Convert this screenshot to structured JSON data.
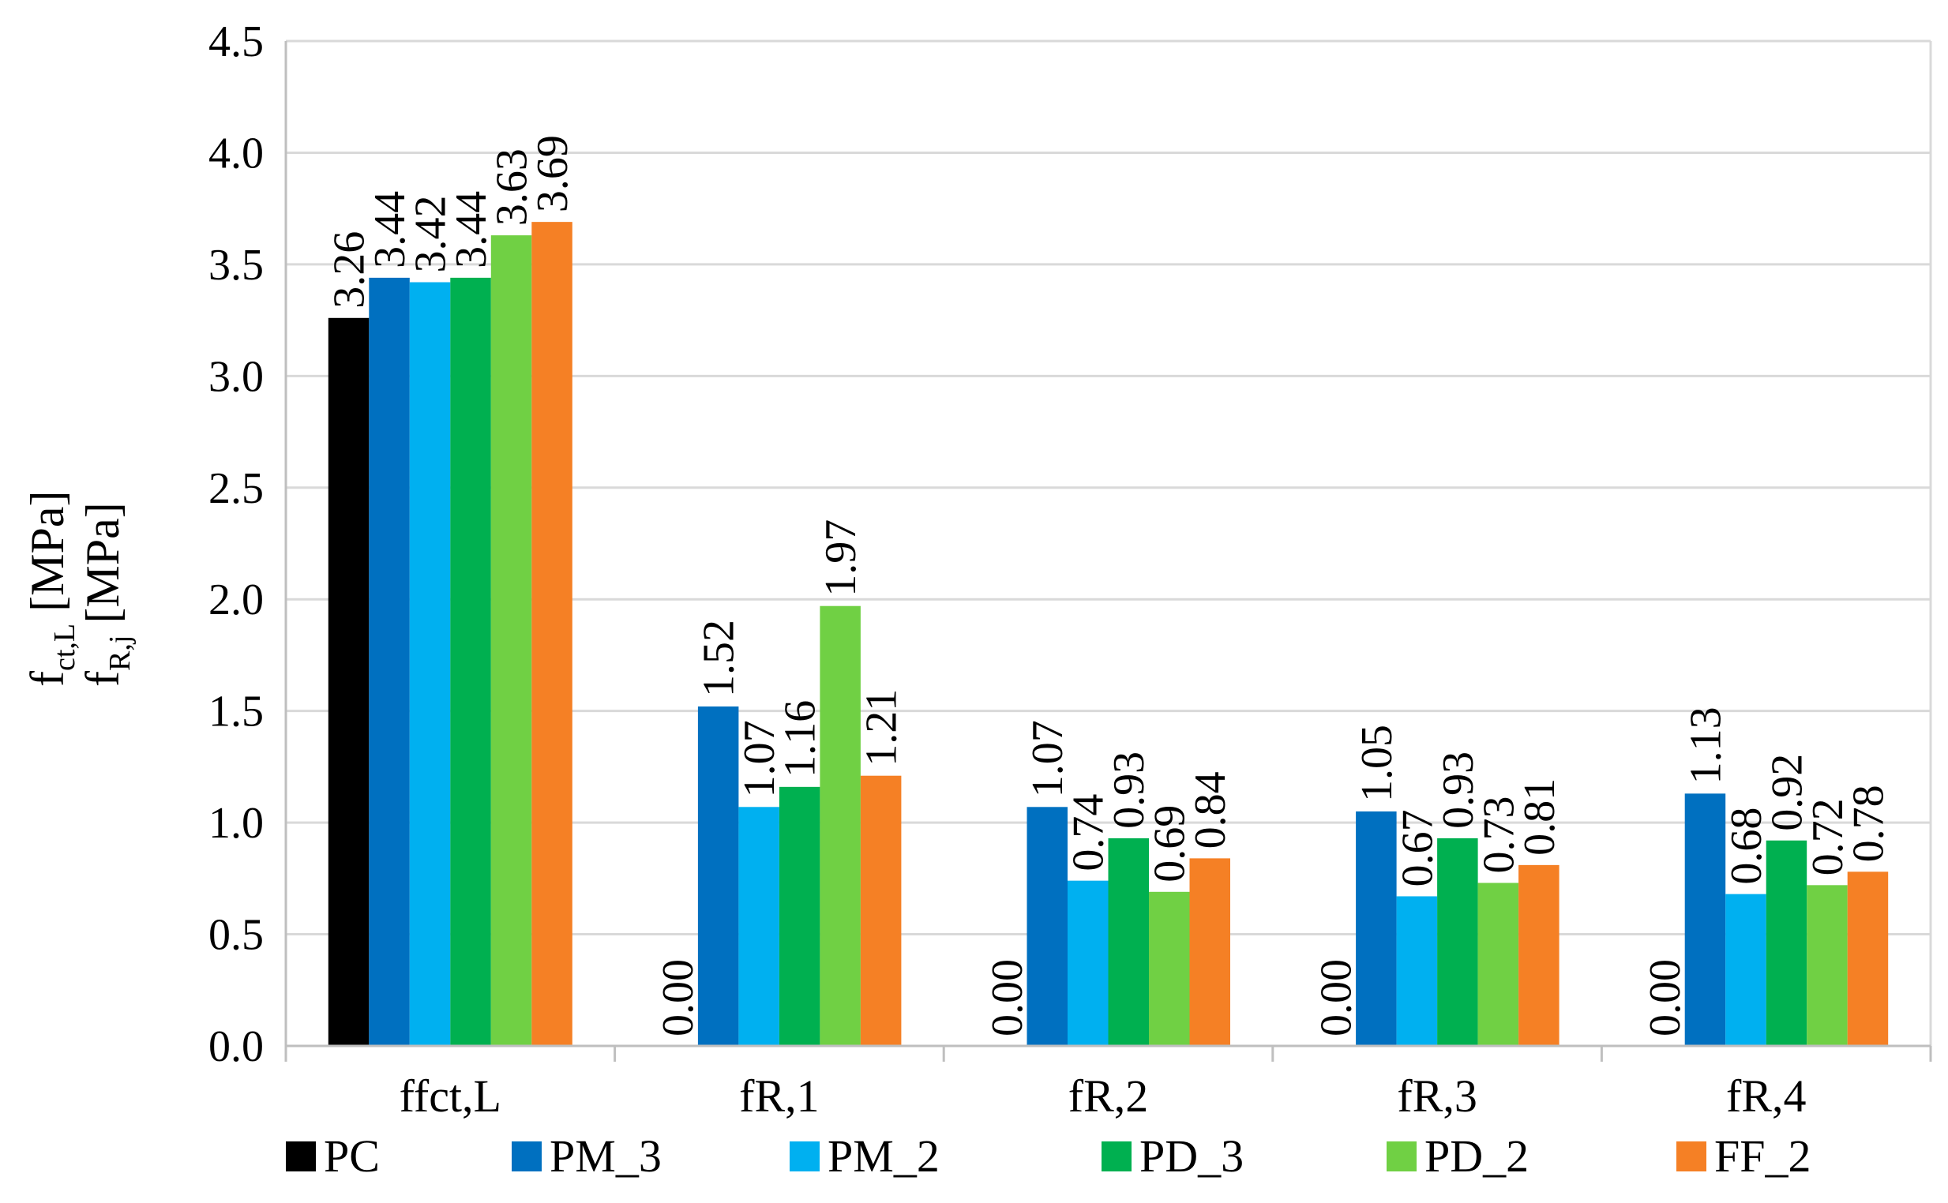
{
  "chart_data": {
    "type": "bar",
    "title": "",
    "xlabel": "",
    "ylabel": {
      "line1_main": "f",
      "line1_sub": "ct,L",
      "line1_unit": " [MPa]",
      "line2_main": "f",
      "line2_sub": "R,j",
      "line2_unit": " [MPa]"
    },
    "ylim": [
      0,
      4.5
    ],
    "ytick_step": 0.5,
    "yticks": [
      "0.0",
      "0.5",
      "1.0",
      "1.5",
      "2.0",
      "2.5",
      "3.0",
      "3.5",
      "4.0",
      "4.5"
    ],
    "grid": true,
    "legend_position": "bottom",
    "categories": [
      "ffct,L",
      "fR,1",
      "fR,2",
      "fR,3",
      "fR,4"
    ],
    "series": [
      {
        "name": "PC",
        "color": "#000000",
        "values": [
          3.26,
          0.0,
          0.0,
          0.0,
          0.0
        ],
        "labels": [
          "3.26",
          "0.00",
          "0.00",
          "0.00",
          "0.00"
        ]
      },
      {
        "name": "PM_3",
        "color": "#0070C0",
        "values": [
          3.44,
          1.52,
          1.07,
          1.05,
          1.13
        ],
        "labels": [
          "3.44",
          "1.52",
          "1.07",
          "1.05",
          "1.13"
        ]
      },
      {
        "name": "PM_2",
        "color": "#00B0F0",
        "values": [
          3.42,
          1.07,
          0.74,
          0.67,
          0.68
        ],
        "labels": [
          "3.42",
          "1.07",
          "0.74",
          "0.67",
          "0.68"
        ]
      },
      {
        "name": "PD_3",
        "color": "#00B050",
        "values": [
          3.44,
          1.16,
          0.93,
          0.93,
          0.92
        ],
        "labels": [
          "3.44",
          "1.16",
          "0.93",
          "0.93",
          "0.92"
        ]
      },
      {
        "name": "PD_2",
        "color": "#70D044",
        "values": [
          3.63,
          1.97,
          0.69,
          0.73,
          0.72
        ],
        "labels": [
          "3.63",
          "1.97",
          "0.69",
          "0.73",
          "0.72"
        ]
      },
      {
        "name": "FF_2",
        "color": "#F58025",
        "values": [
          3.69,
          1.21,
          0.84,
          0.81,
          0.78
        ],
        "labels": [
          "3.69",
          "1.21",
          "0.84",
          "0.81",
          "0.78"
        ]
      }
    ]
  }
}
